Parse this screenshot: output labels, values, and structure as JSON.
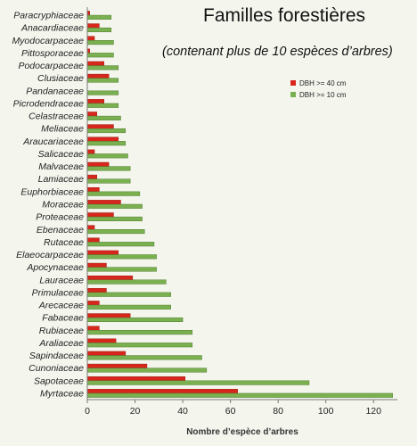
{
  "title": "Familles forestières",
  "subtitle": "(contenant plus de 10 espèces d’arbres)",
  "chart_data": {
    "type": "bar",
    "orientation": "horizontal",
    "xlabel": "Nombre d’espèce d’arbres",
    "ylabel": "",
    "xlim": [
      0,
      130
    ],
    "xticks": [
      0,
      20,
      40,
      60,
      80,
      100,
      120
    ],
    "grid": false,
    "legend_position": "top-right",
    "categories": [
      "Paracryphiaceae",
      "Anacardiaceae",
      "Myodocarpaceae",
      "Pittosporaceae",
      "Podocarpaceae",
      "Clusiaceae",
      "Pandanaceae",
      "Picrodendraceae",
      "Celastraceae",
      "Meliaceae",
      "Araucariaceae",
      "Salicaceae",
      "Malvaceae",
      "Lamiaceae",
      "Euphorbiaceae",
      "Moraceae",
      "Proteaceae",
      "Ebenaceae",
      "Rutaceae",
      "Elaeocarpaceae",
      "Apocynaceae",
      "Lauraceae",
      "Primulaceae",
      "Arecaceae",
      "Fabaceae",
      "Rubiaceae",
      "Araliaceae",
      "Sapindaceae",
      "Cunoniaceae",
      "Sapotaceae",
      "Myrtaceae"
    ],
    "series": [
      {
        "name": "DBH >= 40 cm",
        "color": "#d9261c",
        "values": [
          1,
          5,
          3,
          1,
          7,
          9,
          0,
          7,
          4,
          11,
          13,
          3,
          9,
          4,
          5,
          14,
          11,
          3,
          5,
          13,
          8,
          19,
          8,
          5,
          18,
          5,
          12,
          16,
          25,
          41,
          63
        ]
      },
      {
        "name": "DBH >= 10 cm",
        "color": "#7bb050",
        "values": [
          10,
          10,
          11,
          11,
          13,
          13,
          13,
          13,
          14,
          16,
          16,
          17,
          18,
          18,
          22,
          23,
          23,
          24,
          28,
          29,
          29,
          33,
          35,
          35,
          40,
          44,
          44,
          48,
          50,
          93,
          128
        ]
      }
    ]
  }
}
